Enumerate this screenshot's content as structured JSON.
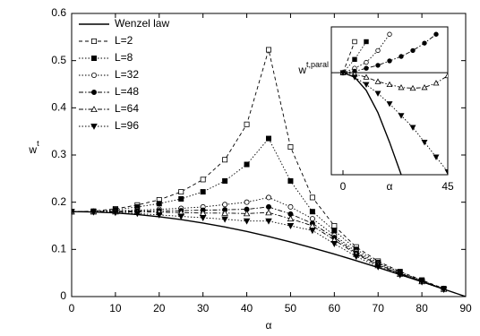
{
  "chart_data": [
    {
      "type": "line",
      "xlabel": "α",
      "ylabel": "w",
      "ylabel_superscript": "t",
      "x": [
        0,
        5,
        10,
        15,
        20,
        25,
        30,
        35,
        40,
        45,
        50,
        55,
        60,
        65,
        70,
        75,
        80,
        85,
        90
      ],
      "xlim": [
        0,
        90
      ],
      "xticks": [
        0,
        10,
        20,
        30,
        40,
        50,
        60,
        70,
        80,
        90
      ],
      "ylim": [
        0,
        0.6
      ],
      "yticks": [
        0,
        0.1,
        0.2,
        0.3,
        0.4,
        0.5,
        0.6
      ],
      "legend": "upper left",
      "series": [
        {
          "name": "Wenzel law",
          "color": "#000000",
          "linestyle": "solid",
          "marker": "none",
          "values": [
            0.18,
            0.1793,
            0.1773,
            0.1739,
            0.1691,
            0.1631,
            0.1559,
            0.1475,
            0.1379,
            0.1273,
            0.1157,
            0.1032,
            0.09,
            0.0761,
            0.0616,
            0.0466,
            0.0313,
            0.0157,
            0
          ]
        },
        {
          "name": "L=2",
          "color": "#000000",
          "linestyle": "dashed",
          "marker": "open-square",
          "values": [
            0.18,
            0.181,
            0.186,
            0.194,
            0.205,
            0.222,
            0.248,
            0.29,
            0.365,
            0.523,
            0.317,
            0.21,
            0.15,
            0.105,
            0.075,
            0.053,
            0.035,
            0.017,
            null
          ]
        },
        {
          "name": "L=8",
          "color": "#000000",
          "linestyle": "dotted",
          "marker": "square",
          "values": [
            0.18,
            0.18,
            0.184,
            0.19,
            0.197,
            0.207,
            0.222,
            0.245,
            0.28,
            0.335,
            0.245,
            0.18,
            0.14,
            0.1,
            0.072,
            0.052,
            0.034,
            0.016,
            null
          ]
        },
        {
          "name": "L=32",
          "color": "#000000",
          "linestyle": "dotted",
          "marker": "open-circle",
          "values": [
            0.18,
            0.18,
            0.182,
            0.183,
            0.185,
            0.187,
            0.19,
            0.195,
            0.2,
            0.21,
            0.19,
            0.165,
            0.13,
            0.095,
            0.07,
            0.05,
            0.033,
            0.016,
            null
          ]
        },
        {
          "name": "L=48",
          "color": "#000000",
          "linestyle": "dash-dot",
          "marker": "circle",
          "values": [
            0.18,
            0.18,
            0.181,
            0.181,
            0.182,
            0.182,
            0.183,
            0.184,
            0.185,
            0.19,
            0.175,
            0.155,
            0.125,
            0.092,
            0.068,
            0.049,
            0.033,
            0.016,
            null
          ]
        },
        {
          "name": "L=64",
          "color": "#000000",
          "linestyle": "dash-dot",
          "marker": "open-triangle",
          "values": [
            0.18,
            0.18,
            0.18,
            0.179,
            0.179,
            0.178,
            0.177,
            0.177,
            0.176,
            0.178,
            0.165,
            0.15,
            0.12,
            0.09,
            0.066,
            0.048,
            0.032,
            0.016,
            null
          ]
        },
        {
          "name": "L=96",
          "color": "#000000",
          "linestyle": "dotted",
          "marker": "down-triangle",
          "values": [
            0.18,
            0.179,
            0.178,
            0.176,
            0.173,
            0.17,
            0.167,
            0.164,
            0.16,
            0.16,
            0.15,
            0.14,
            0.112,
            0.085,
            0.063,
            0.046,
            0.031,
            0.015,
            null
          ]
        }
      ]
    },
    {
      "type": "line",
      "xlabel": "α",
      "ylabel": "w",
      "ylabel_superscript": "t,paral",
      "x": [
        0,
        5,
        10,
        15,
        20,
        25,
        30,
        35,
        40,
        45
      ],
      "xlim": [
        -5,
        45
      ],
      "xticks": [
        0,
        45
      ],
      "ylim": [
        0,
        1
      ],
      "hline": 0.69,
      "series": [
        {
          "color": "#000000",
          "linestyle": "solid",
          "marker": "none",
          "values": [
            0.69,
            0.66,
            0.57,
            0.42,
            0.22,
            0,
            null,
            null,
            null,
            null
          ]
        },
        {
          "color": "#000000",
          "linestyle": "dashed",
          "marker": "open-square",
          "values": [
            0.69,
            0.9,
            null,
            null,
            null,
            null,
            null,
            null,
            null,
            null
          ]
        },
        {
          "color": "#000000",
          "linestyle": "dotted",
          "marker": "square",
          "values": [
            0.69,
            0.78,
            0.9,
            null,
            null,
            null,
            null,
            null,
            null,
            null
          ]
        },
        {
          "color": "#000000",
          "linestyle": "dotted",
          "marker": "open-circle",
          "values": [
            0.69,
            0.72,
            0.76,
            0.84,
            0.95,
            null,
            null,
            null,
            null,
            null
          ]
        },
        {
          "color": "#000000",
          "linestyle": "dash-dot",
          "marker": "circle",
          "values": [
            0.69,
            0.7,
            0.72,
            0.74,
            0.77,
            0.8,
            0.84,
            0.89,
            0.95,
            null
          ]
        },
        {
          "color": "#000000",
          "linestyle": "dash-dot",
          "marker": "open-triangle",
          "values": [
            0.69,
            0.68,
            0.66,
            0.63,
            0.61,
            0.59,
            0.585,
            0.59,
            0.62,
            0.67
          ]
        },
        {
          "color": "#000000",
          "linestyle": "dotted",
          "marker": "down-triangle",
          "values": [
            0.69,
            0.66,
            0.61,
            0.55,
            0.48,
            0.4,
            0.32,
            0.22,
            0.12,
            0.02
          ]
        }
      ]
    }
  ]
}
